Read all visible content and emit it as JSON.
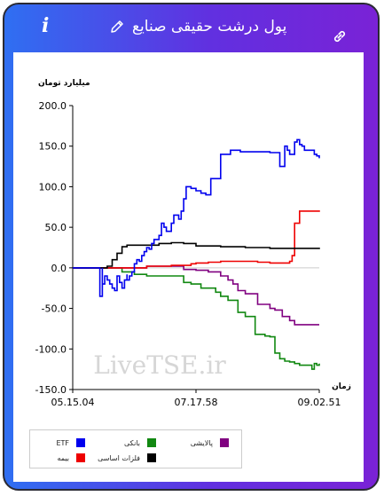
{
  "header": {
    "title": "پول درشت حقیقی صنایع",
    "info_icon": "info-icon",
    "edit_icon": "pencil-icon",
    "link_icon": "link-icon",
    "info_glyph": "i"
  },
  "watermark": "LiveTSE.ir",
  "colors": {
    "ETF": "#0000ee",
    "bank": "#118811",
    "refinery": "#800080",
    "insurance": "#ee0000",
    "basic_metals": "#000000",
    "zero_line": "#cccccc"
  },
  "chart_data": {
    "type": "line",
    "title": "",
    "ylabel": "میلیارد تومان",
    "xlabel": "زمان",
    "ylim": [
      -150,
      200
    ],
    "yticks": [
      200.0,
      150.0,
      100.0,
      50.0,
      0.0,
      -50.0,
      -100.0,
      -150.0
    ],
    "ytick_labels": [
      "200.0",
      "150.0",
      "100.0",
      "50.0",
      "0.0",
      "-50.0",
      "-100.0",
      "-150.0"
    ],
    "xlim": [
      0,
      100
    ],
    "xticks": [
      0,
      50,
      100
    ],
    "xtick_labels": [
      "05.15.04",
      "07.17.58",
      "09.02.51"
    ],
    "grid": false,
    "legend_position": "bottom-left",
    "series": [
      {
        "name": "ETF",
        "color_key": "ETF",
        "x": [
          0,
          8,
          11,
          11,
          12,
          12,
          13,
          14,
          15,
          16,
          17,
          18,
          18,
          19,
          20,
          21,
          22,
          22,
          23,
          24,
          25,
          26,
          27,
          28,
          29,
          30,
          31,
          32,
          33,
          35,
          36,
          37,
          38,
          40,
          41,
          43,
          44,
          45,
          46,
          48,
          50,
          52,
          54,
          56,
          58,
          60,
          62,
          63,
          64,
          65,
          66,
          68,
          70,
          75,
          80,
          84,
          86,
          87,
          88,
          90,
          91,
          92,
          93,
          94,
          96,
          98,
          99,
          100
        ],
        "y": [
          0,
          0,
          0,
          -35,
          0,
          -20,
          -10,
          -15,
          -20,
          -25,
          -28,
          -22,
          -10,
          -18,
          -25,
          -15,
          -8,
          -15,
          -10,
          -5,
          5,
          10,
          8,
          15,
          20,
          25,
          23,
          30,
          35,
          40,
          55,
          50,
          45,
          55,
          65,
          60,
          70,
          85,
          100,
          98,
          95,
          92,
          90,
          110,
          110,
          140,
          140,
          140,
          145,
          145,
          145,
          143,
          143,
          143,
          142,
          125,
          150,
          145,
          140,
          155,
          158,
          152,
          150,
          145,
          145,
          140,
          138,
          135
        ]
      },
      {
        "name": "بانکی",
        "color_key": "bank",
        "x": [
          0,
          15,
          20,
          25,
          30,
          35,
          45,
          48,
          52,
          55,
          58,
          60,
          63,
          65,
          67,
          70,
          74,
          76,
          78,
          80,
          82,
          84,
          86,
          88,
          90,
          92,
          95,
          97,
          98,
          99,
          100
        ],
        "y": [
          0,
          0,
          -5,
          -8,
          -10,
          -10,
          -18,
          -20,
          -25,
          -25,
          -30,
          -35,
          -40,
          -40,
          -55,
          -60,
          -82,
          -82,
          -84,
          -85,
          -105,
          -112,
          -115,
          -116,
          -118,
          -120,
          -120,
          -125,
          -118,
          -120,
          -118
        ]
      },
      {
        "name": "پالایشی",
        "color_key": "refinery",
        "x": [
          0,
          12,
          20,
          30,
          40,
          45,
          50,
          55,
          60,
          63,
          65,
          67,
          70,
          73,
          75,
          80,
          82,
          85,
          88,
          90,
          100
        ],
        "y": [
          0,
          0,
          0,
          2,
          2,
          -2,
          -3,
          -5,
          -10,
          -15,
          -20,
          -28,
          -32,
          -32,
          -45,
          -50,
          -52,
          -60,
          -65,
          -70,
          -70
        ]
      },
      {
        "name": "بیمه",
        "color_key": "insurance",
        "x": [
          0,
          20,
          30,
          40,
          48,
          50,
          55,
          60,
          70,
          75,
          80,
          85,
          88,
          89,
          90,
          92,
          95,
          100
        ],
        "y": [
          0,
          0,
          2,
          3,
          5,
          6,
          7,
          8,
          8,
          7,
          6,
          6,
          8,
          15,
          55,
          70,
          70,
          69
        ]
      },
      {
        "name": "فلزات اساسی",
        "color_key": "basic_metals",
        "x": [
          0,
          12,
          14,
          16,
          18,
          20,
          22,
          25,
          28,
          30,
          35,
          40,
          45,
          50,
          60,
          70,
          80,
          90,
          100
        ],
        "y": [
          0,
          0,
          2,
          10,
          18,
          26,
          28,
          28,
          28,
          28,
          30,
          31,
          30,
          27,
          26,
          25,
          24,
          24,
          23
        ]
      }
    ]
  }
}
